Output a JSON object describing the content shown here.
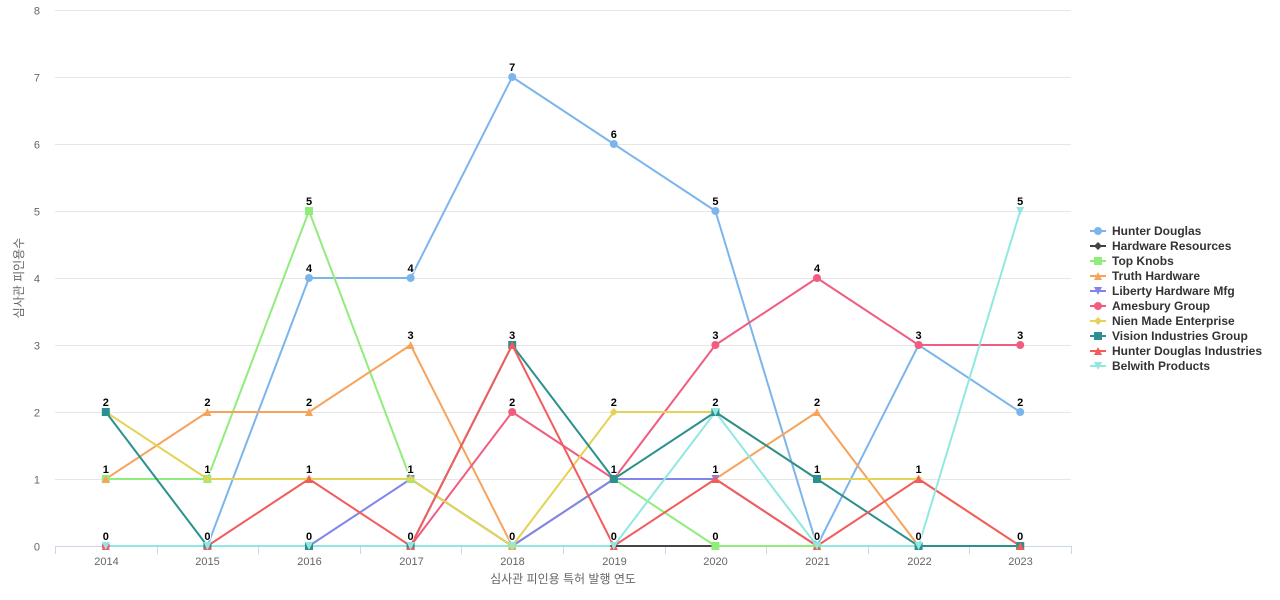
{
  "chart_data": {
    "type": "line",
    "title": "",
    "xlabel": "심사관 피인용 특허 발행 연도",
    "ylabel": "심사관 피인용수",
    "x": [
      "2014",
      "2015",
      "2016",
      "2017",
      "2018",
      "2019",
      "2020",
      "2021",
      "2022",
      "2023"
    ],
    "ylim": [
      0,
      8
    ],
    "yticks": [
      0,
      1,
      2,
      3,
      4,
      5,
      6,
      7,
      8
    ],
    "grid": true,
    "legend_position": "right",
    "series": [
      {
        "name": "Hunter Douglas",
        "color": "#7cb5ec",
        "marker": "circle",
        "values": [
          0,
          0,
          4,
          4,
          7,
          6,
          5,
          0,
          3,
          2
        ]
      },
      {
        "name": "Hardware Resources",
        "color": "#434348",
        "marker": "diamond",
        "values": [
          0,
          0,
          0,
          0,
          0,
          0,
          0,
          0,
          0,
          0
        ]
      },
      {
        "name": "Top Knobs",
        "color": "#90ed7d",
        "marker": "square",
        "values": [
          1,
          1,
          5,
          1,
          0,
          1,
          0,
          0,
          0,
          0
        ]
      },
      {
        "name": "Truth Hardware",
        "color": "#f7a35c",
        "marker": "triangle",
        "values": [
          1,
          2,
          2,
          3,
          0,
          1,
          1,
          2,
          0,
          0
        ]
      },
      {
        "name": "Liberty Hardware Mfg",
        "color": "#8085e9",
        "marker": "triangle-down",
        "values": [
          0,
          0,
          0,
          1,
          0,
          1,
          1,
          0,
          0,
          0
        ]
      },
      {
        "name": "Amesbury Group",
        "color": "#f15c80",
        "marker": "circle",
        "values": [
          0,
          0,
          0,
          0,
          2,
          1,
          3,
          4,
          3,
          3
        ]
      },
      {
        "name": "Nien Made Enterprise",
        "color": "#e4d354",
        "marker": "diamond",
        "values": [
          2,
          1,
          1,
          1,
          0,
          2,
          2,
          1,
          1,
          0
        ]
      },
      {
        "name": "Vision Industries Group",
        "color": "#2b908f",
        "marker": "square",
        "values": [
          2,
          0,
          0,
          0,
          3,
          1,
          2,
          1,
          0,
          0
        ]
      },
      {
        "name": "Hunter Douglas Industries",
        "color": "#f45b5b",
        "marker": "triangle",
        "values": [
          0,
          0,
          1,
          0,
          3,
          0,
          1,
          0,
          1,
          0
        ]
      },
      {
        "name": "Belwith Products",
        "color": "#91e8e1",
        "marker": "triangle-down",
        "values": [
          0,
          0,
          0,
          0,
          0,
          0,
          2,
          0,
          0,
          5
        ]
      }
    ],
    "data_labels": [
      {
        "x": "2014",
        "text": "2",
        "value": 2
      },
      {
        "x": "2014",
        "text": "1",
        "value": 1
      },
      {
        "x": "2014",
        "text": "0",
        "value": 0
      },
      {
        "x": "2015",
        "text": "2",
        "value": 2
      },
      {
        "x": "2015",
        "text": "1",
        "value": 1
      },
      {
        "x": "2015",
        "text": "0",
        "value": 0
      },
      {
        "x": "2016",
        "text": "5",
        "value": 5
      },
      {
        "x": "2016",
        "text": "4",
        "value": 4
      },
      {
        "x": "2016",
        "text": "2",
        "value": 2
      },
      {
        "x": "2016",
        "text": "1",
        "value": 1
      },
      {
        "x": "2016",
        "text": "0",
        "value": 0
      },
      {
        "x": "2017",
        "text": "4",
        "value": 4
      },
      {
        "x": "2017",
        "text": "3",
        "value": 3
      },
      {
        "x": "2017",
        "text": "1",
        "value": 1
      },
      {
        "x": "2017",
        "text": "0",
        "value": 0
      },
      {
        "x": "2018",
        "text": "7",
        "value": 7
      },
      {
        "x": "2018",
        "text": "3",
        "value": 3
      },
      {
        "x": "2018",
        "text": "2",
        "value": 2
      },
      {
        "x": "2018",
        "text": "0",
        "value": 0
      },
      {
        "x": "2019",
        "text": "6",
        "value": 6
      },
      {
        "x": "2019",
        "text": "2",
        "value": 2
      },
      {
        "x": "2019",
        "text": "1",
        "value": 1
      },
      {
        "x": "2019",
        "text": "0",
        "value": 0
      },
      {
        "x": "2020",
        "text": "5",
        "value": 5
      },
      {
        "x": "2020",
        "text": "3",
        "value": 3
      },
      {
        "x": "2020",
        "text": "2",
        "value": 2
      },
      {
        "x": "2020",
        "text": "1",
        "value": 1
      },
      {
        "x": "2020",
        "text": "0",
        "value": 0
      },
      {
        "x": "2021",
        "text": "4",
        "value": 4
      },
      {
        "x": "2021",
        "text": "2",
        "value": 2
      },
      {
        "x": "2021",
        "text": "1",
        "value": 1
      },
      {
        "x": "2021",
        "text": "0",
        "value": 0
      },
      {
        "x": "2022",
        "text": "3",
        "value": 3
      },
      {
        "x": "2022",
        "text": "1",
        "value": 1
      },
      {
        "x": "2022",
        "text": "0",
        "value": 0
      },
      {
        "x": "2023",
        "text": "5",
        "value": 5
      },
      {
        "x": "2023",
        "text": "3",
        "value": 3
      },
      {
        "x": "2023",
        "text": "2",
        "value": 2
      },
      {
        "x": "2023",
        "text": "0",
        "value": 0
      }
    ]
  }
}
